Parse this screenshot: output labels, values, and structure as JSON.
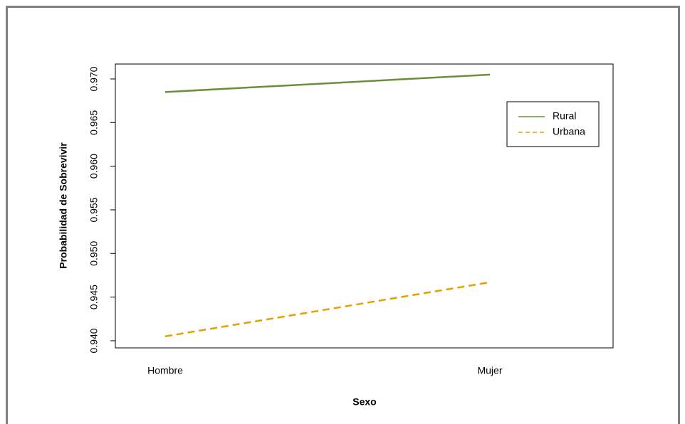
{
  "chart_data": {
    "type": "line",
    "xlabel": "Sexo",
    "ylabel": "Probabilidad de Sobrevivir",
    "categories": [
      "Hombre",
      "Mujer"
    ],
    "series": [
      {
        "name": "Rural",
        "color": "#6b8e3a",
        "linestyle": "solid",
        "values": [
          0.9685,
          0.9705
        ]
      },
      {
        "name": "Urbana",
        "color": "#e69f00",
        "linestyle": "dashed",
        "values": [
          0.9405,
          0.9467
        ]
      }
    ],
    "ylim": [
      0.93918,
      0.97171
    ],
    "yticks": [
      {
        "value": 0.94,
        "label": "0.940"
      },
      {
        "value": 0.945,
        "label": "0.945"
      },
      {
        "value": 0.95,
        "label": "0.950"
      },
      {
        "value": 0.955,
        "label": "0.955"
      },
      {
        "value": 0.96,
        "label": "0.960"
      },
      {
        "value": 0.965,
        "label": "0.965"
      },
      {
        "value": 0.97,
        "label": "0.970"
      }
    ],
    "legend": "topright"
  }
}
